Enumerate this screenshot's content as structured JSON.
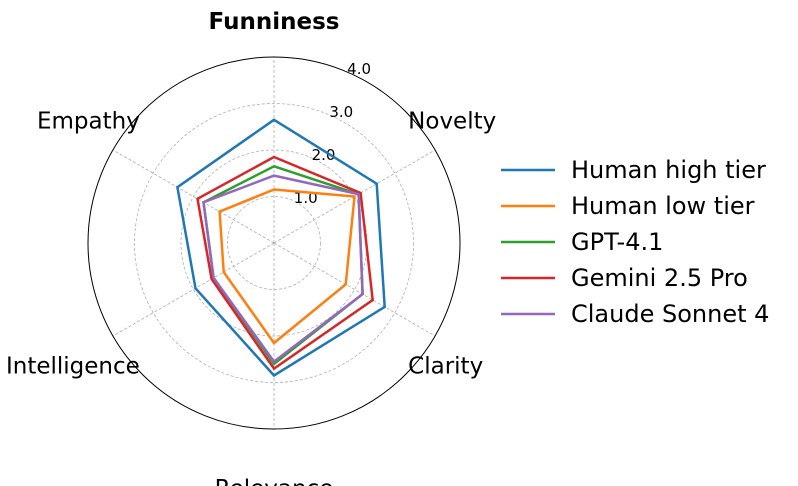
{
  "chart_data": {
    "type": "radar",
    "title": "Funniness",
    "axes": [
      "Novelty",
      "Clarity",
      "Relevance",
      "Intelligence",
      "Empathy"
    ],
    "rmax": 4.0,
    "ticks": [
      1.0,
      2.0,
      3.0,
      4.0
    ],
    "tick_labels": [
      "1.0",
      "2.0",
      "3.0",
      "4.0"
    ],
    "grid": true,
    "legend_position": "right",
    "series": [
      {
        "name": "Human high tier",
        "color": "#1f77b4",
        "values": {
          "Funniness": 2.65,
          "Novelty": 2.55,
          "Clarity": 2.75,
          "Relevance": 2.85,
          "Intelligence": 1.95,
          "Empathy": 2.4
        }
      },
      {
        "name": "Human low tier",
        "color": "#ff7f0e",
        "values": {
          "Funniness": 1.15,
          "Novelty": 2.0,
          "Clarity": 1.78,
          "Relevance": 2.15,
          "Intelligence": 1.25,
          "Empathy": 1.35
        }
      },
      {
        "name": "GPT-4.1",
        "color": "#2ca02c",
        "values": {
          "Funniness": 1.65,
          "Novelty": 2.1,
          "Clarity": 2.2,
          "Relevance": 2.6,
          "Intelligence": 1.5,
          "Empathy": 1.75
        }
      },
      {
        "name": "Gemini 2.5 Pro",
        "color": "#d62728",
        "values": {
          "Funniness": 1.85,
          "Novelty": 2.15,
          "Clarity": 2.45,
          "Relevance": 2.7,
          "Intelligence": 1.55,
          "Empathy": 1.9
        }
      },
      {
        "name": "Claude Sonnet 4",
        "color": "#9467bd",
        "values": {
          "Funniness": 1.45,
          "Novelty": 2.1,
          "Clarity": 2.2,
          "Relevance": 2.55,
          "Intelligence": 1.5,
          "Empathy": 1.75
        }
      }
    ]
  }
}
